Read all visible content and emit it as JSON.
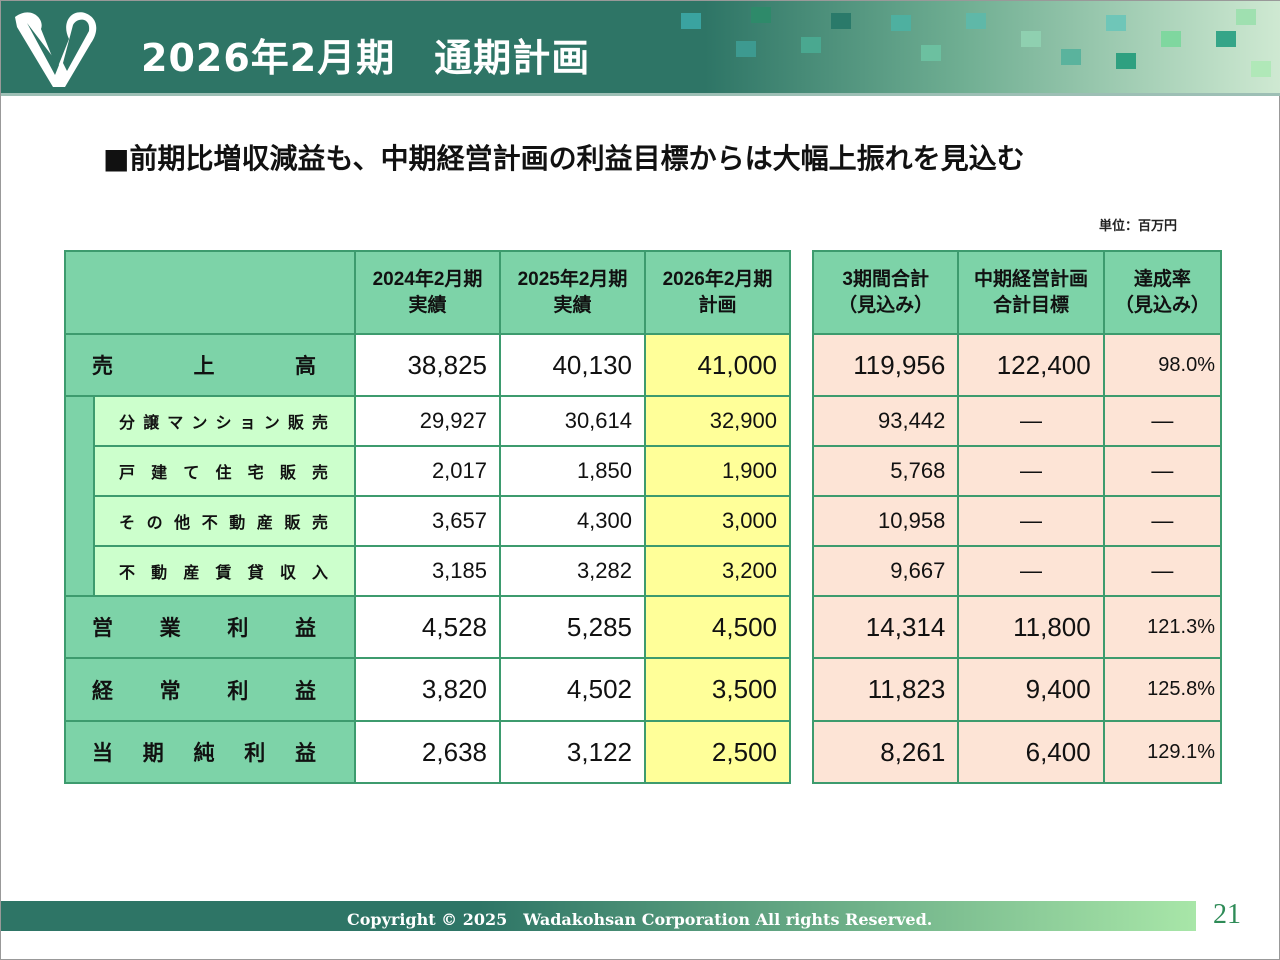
{
  "header": {
    "title": "2026年2月期　通期計画",
    "logo": "W"
  },
  "subtitle": "■前期比増収減益も、中期経営計画の利益目標からは大幅上振れを見込む",
  "unit": "単位：百万円",
  "left_table": {
    "headers": [
      [
        "2024年2月期",
        "実績"
      ],
      [
        "2025年2月期",
        "実績"
      ],
      [
        "2026年2月期",
        "計画"
      ]
    ]
  },
  "right_table": {
    "headers": [
      [
        "3期間合計",
        "（見込み）"
      ],
      [
        "中期経営計画",
        "合計目標"
      ],
      [
        "達成率",
        "（見込み）"
      ]
    ]
  },
  "rows": [
    {
      "label": "売上高",
      "sub": false,
      "values": [
        "38,825",
        "40,130",
        "41,000"
      ],
      "right": [
        "119,956",
        "122,400",
        "98.0%"
      ]
    },
    {
      "label": "分譲マンション販売",
      "sub": true,
      "values": [
        "29,927",
        "30,614",
        "32,900"
      ],
      "right": [
        "93,442",
        "―",
        "―"
      ]
    },
    {
      "label": "戸建て住宅販売",
      "sub": true,
      "values": [
        "2,017",
        "1,850",
        "1,900"
      ],
      "right": [
        "5,768",
        "―",
        "―"
      ]
    },
    {
      "label": "その他不動産販売",
      "sub": true,
      "values": [
        "3,657",
        "4,300",
        "3,000"
      ],
      "right": [
        "10,958",
        "―",
        "―"
      ]
    },
    {
      "label": "不動産賃貸収入",
      "sub": true,
      "values": [
        "3,185",
        "3,282",
        "3,200"
      ],
      "right": [
        "9,667",
        "―",
        "―"
      ]
    },
    {
      "label": "営業利益",
      "sub": false,
      "values": [
        "4,528",
        "5,285",
        "4,500"
      ],
      "right": [
        "14,314",
        "11,800",
        "121.3%"
      ]
    },
    {
      "label": "経常利益",
      "sub": false,
      "values": [
        "3,820",
        "4,502",
        "3,500"
      ],
      "right": [
        "11,823",
        "9,400",
        "125.8%"
      ]
    },
    {
      "label": "当期純利益",
      "sub": false,
      "values": [
        "2,638",
        "3,122",
        "2,500"
      ],
      "right": [
        "8,261",
        "6,400",
        "129.1%"
      ]
    }
  ],
  "footer": {
    "copyright": "Copyright © 2025　Wadakohsan Corporation All rights Reserved.",
    "page": "21"
  }
}
